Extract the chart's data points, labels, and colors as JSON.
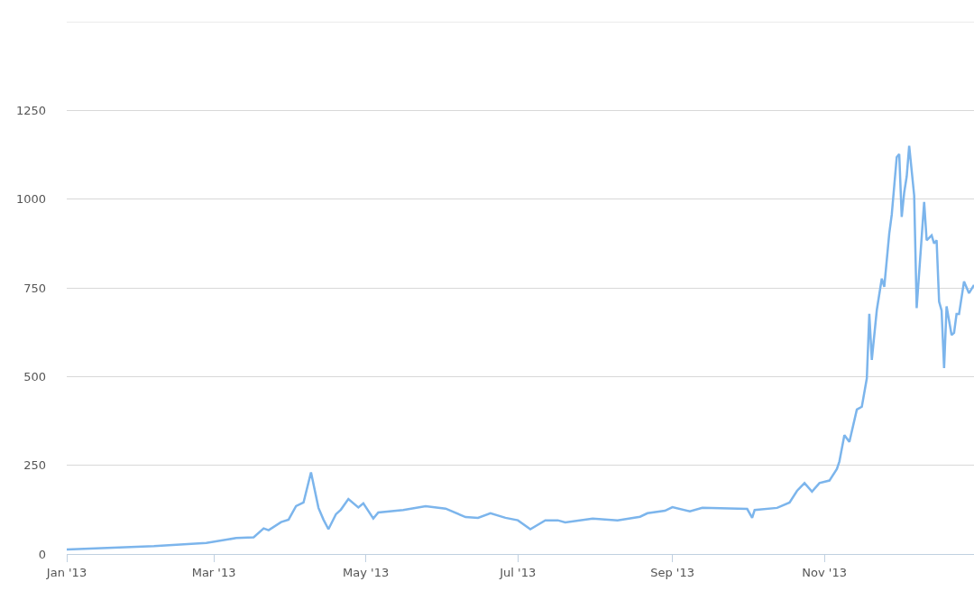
{
  "chart_data": {
    "type": "line",
    "grid": "y",
    "marker": "none",
    "line_style": "solid",
    "x": [
      "2013-01-01",
      "2013-02-05",
      "2013-02-26",
      "2013-03-10",
      "2013-03-17",
      "2013-03-21",
      "2013-03-23",
      "2013-03-28",
      "2013-03-31",
      "2013-04-03",
      "2013-04-06",
      "2013-04-09",
      "2013-04-12",
      "2013-04-14",
      "2013-04-16",
      "2013-04-19",
      "2013-04-21",
      "2013-04-24",
      "2013-04-28",
      "2013-04-30",
      "2013-05-04",
      "2013-05-06",
      "2013-05-16",
      "2013-05-25",
      "2013-06-02",
      "2013-06-10",
      "2013-06-15",
      "2013-06-20",
      "2013-06-26",
      "2013-07-01",
      "2013-07-06",
      "2013-07-12",
      "2013-07-17",
      "2013-07-20",
      "2013-07-31",
      "2013-08-10",
      "2013-08-19",
      "2013-08-22",
      "2013-08-29",
      "2013-09-01",
      "2013-09-08",
      "2013-09-13",
      "2013-10-01",
      "2013-10-03",
      "2013-10-04",
      "2013-10-13",
      "2013-10-18",
      "2013-10-21",
      "2013-10-24",
      "2013-10-27",
      "2013-10-30",
      "2013-11-03",
      "2013-11-06",
      "2013-11-07",
      "2013-11-09",
      "2013-11-11",
      "2013-11-14",
      "2013-11-16",
      "2013-11-18",
      "2013-11-19",
      "2013-11-20",
      "2013-11-22",
      "2013-11-24",
      "2013-11-25",
      "2013-11-27",
      "2013-11-28",
      "2013-11-30",
      "2013-12-01",
      "2013-12-02",
      "2013-12-03",
      "2013-12-04",
      "2013-12-05",
      "2013-12-07",
      "2013-12-08",
      "2013-12-11",
      "2013-12-12",
      "2013-12-14",
      "2013-12-15",
      "2013-12-16",
      "2013-12-17",
      "2013-12-18",
      "2013-12-19",
      "2013-12-20",
      "2013-12-22",
      "2013-12-23",
      "2013-12-24",
      "2013-12-25",
      "2013-12-27",
      "2013-12-29",
      "2013-12-31"
    ],
    "series": [
      {
        "color": "#7cb5ec",
        "values": [
          13,
          22,
          31,
          45,
          47,
          72,
          67,
          90,
          97,
          135,
          145,
          230,
          130,
          97,
          70,
          112,
          125,
          155,
          131,
          143,
          100,
          117,
          124,
          135,
          128,
          104,
          102,
          115,
          102,
          95,
          70,
          95,
          95,
          89,
          100,
          95,
          105,
          115,
          122,
          132,
          120,
          130,
          127,
          102,
          124,
          130,
          145,
          178,
          200,
          176,
          200,
          207,
          240,
          261,
          335,
          316,
          407,
          415,
          495,
          677,
          547,
          687,
          776,
          753,
          903,
          956,
          1118,
          1127,
          950,
          1019,
          1064,
          1150,
          1010,
          693,
          992,
          884,
          898,
          875,
          884,
          711,
          686,
          524,
          698,
          617,
          623,
          676,
          676,
          768,
          735,
          758
        ]
      }
    ],
    "xlim": [
      "2013-01-01",
      "2013-12-31"
    ],
    "xticks": [
      {
        "value": "2013-01-01",
        "label": "Jan '13"
      },
      {
        "value": "2013-03-01",
        "label": "Mar '13"
      },
      {
        "value": "2013-05-01",
        "label": "May '13"
      },
      {
        "value": "2013-07-01",
        "label": "Jul '13"
      },
      {
        "value": "2013-09-01",
        "label": "Sep '13"
      },
      {
        "value": "2013-11-01",
        "label": "Nov '13"
      }
    ],
    "ylim": [
      0,
      1500
    ],
    "yticks": [
      0,
      250,
      500,
      750,
      1000,
      1250,
      {
        "value": 1500,
        "label": null
      }
    ]
  }
}
